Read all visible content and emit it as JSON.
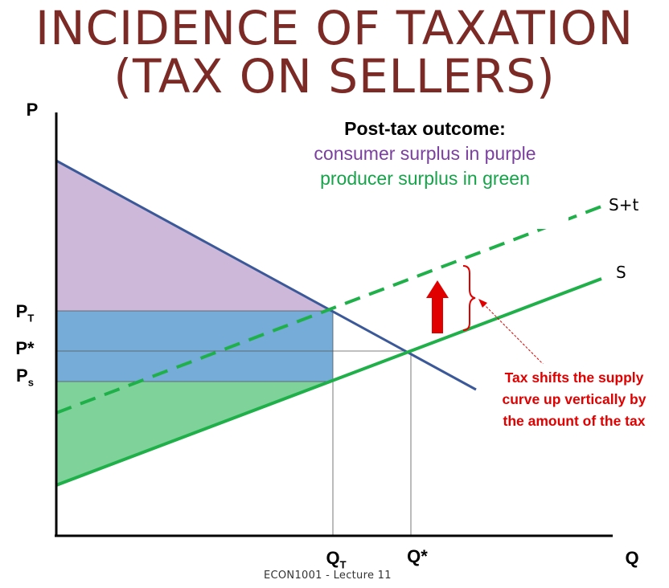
{
  "title": {
    "line1": "INCIDENCE OF TAXATION",
    "line2": "(TAX ON SELLERS)"
  },
  "axes": {
    "y_label": "P",
    "x_label": "Q"
  },
  "price_labels": {
    "p_tax": {
      "main": "P",
      "sub": "T"
    },
    "p_star": "P*",
    "p_sellers": {
      "main": "P",
      "sub": "s"
    }
  },
  "quantity_labels": {
    "q_tax": {
      "main": "Q",
      "sub": "T"
    },
    "q_star": "Q*"
  },
  "curves": {
    "supply": "S",
    "supply_plus_tax": "S+t"
  },
  "callout": {
    "heading": "Post-tax outcome:",
    "line_consumer": "consumer surplus in purple",
    "line_producer": "producer surplus in green"
  },
  "tax_note": {
    "line1": "Tax shifts the supply",
    "line2": "curve up vertically by",
    "line3": "the amount of the tax"
  },
  "footer": "ECON1001 - Lecture 11",
  "colors": {
    "title": "#7b2a26",
    "demand": "#3b5998",
    "supply": "#1fb04a",
    "consumer_surplus": "#cdb8d9",
    "tax_revenue": "#76acd8",
    "producer_surplus": "#7fd39a",
    "tax_arrow": "#e00000"
  }
}
